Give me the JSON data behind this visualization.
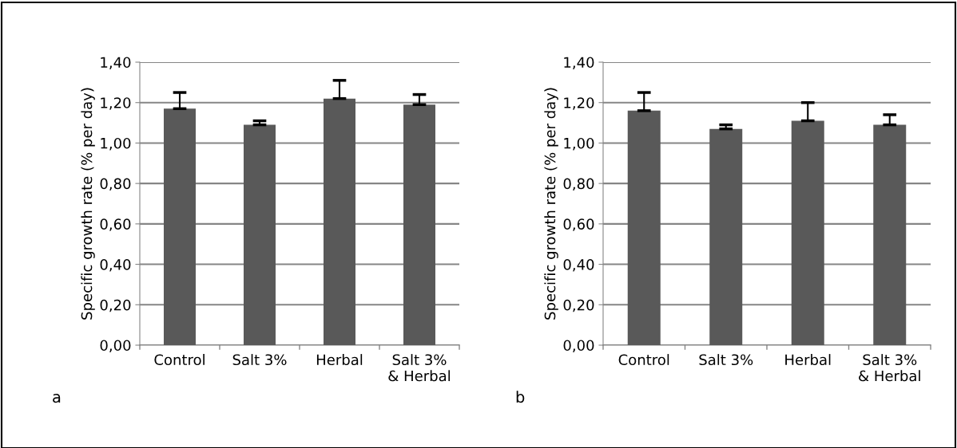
{
  "chart_data": [
    {
      "type": "bar",
      "categories": [
        "Control",
        "Salt 3%",
        "Herbal",
        "Salt 3%\n& Herbal"
      ],
      "ylabel": "Specific growth rate (% per day)",
      "color": "#595959",
      "values": [
        1.17,
        1.09,
        1.22,
        1.19
      ],
      "errors": [
        [
          1.17,
          1.25
        ],
        [
          1.09,
          1.11
        ],
        [
          1.22,
          1.31
        ],
        [
          1.19,
          1.24
        ]
      ],
      "ylim": [
        0,
        1.4
      ],
      "yticks": [
        {
          "value": 0,
          "label": "0,00"
        },
        {
          "value": 0.2,
          "label": "0,20"
        },
        {
          "value": 0.4,
          "label": "0,40"
        },
        {
          "value": 0.6,
          "label": "0,60"
        },
        {
          "value": 0.8,
          "label": "0,80"
        },
        {
          "value": 1.0,
          "label": "1,00"
        },
        {
          "value": 1.2,
          "label": "1,20"
        },
        {
          "value": 1.4,
          "label": "1,40"
        }
      ],
      "grid": "y",
      "annotations": [
        "a"
      ]
    },
    {
      "type": "bar",
      "categories": [
        "Control",
        "Salt 3%",
        "Herbal",
        "Salt 3%\n& Herbal"
      ],
      "ylabel": "Specific growth rate (% per day)",
      "color": "#595959",
      "values": [
        1.16,
        1.07,
        1.11,
        1.09
      ],
      "errors": [
        [
          1.16,
          1.25
        ],
        [
          1.07,
          1.09
        ],
        [
          1.11,
          1.2
        ],
        [
          1.09,
          1.14
        ]
      ],
      "ylim": [
        0,
        1.4
      ],
      "yticks": [
        {
          "value": 0,
          "label": "0,00"
        },
        {
          "value": 0.2,
          "label": "0,20"
        },
        {
          "value": 0.4,
          "label": "0,40"
        },
        {
          "value": 0.6,
          "label": "0,60"
        },
        {
          "value": 0.8,
          "label": "0,80"
        },
        {
          "value": 1.0,
          "label": "1,00"
        },
        {
          "value": 1.2,
          "label": "1,20"
        },
        {
          "value": 1.4,
          "label": "1,40"
        }
      ],
      "grid": "y",
      "annotations": [
        "b"
      ]
    }
  ]
}
